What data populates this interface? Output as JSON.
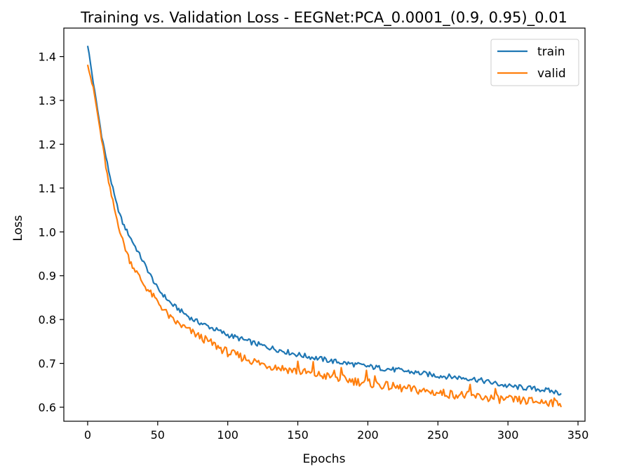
{
  "chart_data": {
    "type": "line",
    "title": "Training vs. Validation Loss - EEGNet:PCA_0.0001_(0.9, 0.95)_0.01",
    "xlabel": "Epochs",
    "ylabel": "Loss",
    "xlim": [
      -17,
      355
    ],
    "ylim": [
      0.568,
      1.465
    ],
    "xticks": [
      0,
      50,
      100,
      150,
      200,
      250,
      300,
      350
    ],
    "xtick_labels": [
      "0",
      "50",
      "100",
      "150",
      "200",
      "250",
      "300",
      "350"
    ],
    "yticks": [
      0.6,
      0.7,
      0.8,
      0.9,
      1.0,
      1.1,
      1.2,
      1.3,
      1.4
    ],
    "ytick_labels": [
      "0.6",
      "0.7",
      "0.8",
      "0.9",
      "1.0",
      "1.1",
      "1.2",
      "1.3",
      "1.4"
    ],
    "grid": false,
    "legend": "top-right",
    "epochs": 339,
    "series": [
      {
        "name": "train",
        "color": "#1f77b4",
        "x": [
          0,
          5,
          10,
          15,
          20,
          25,
          30,
          40,
          50,
          60,
          75,
          100,
          125,
          150,
          175,
          200,
          225,
          250,
          275,
          300,
          325,
          338
        ],
        "y": [
          1.427,
          1.32,
          1.22,
          1.14,
          1.07,
          1.02,
          0.99,
          0.93,
          0.87,
          0.835,
          0.8,
          0.765,
          0.74,
          0.72,
          0.705,
          0.693,
          0.683,
          0.672,
          0.665,
          0.648,
          0.64,
          0.632
        ]
      },
      {
        "name": "valid",
        "color": "#ff7f0e",
        "x": [
          0,
          5,
          10,
          15,
          20,
          25,
          30,
          40,
          50,
          60,
          75,
          100,
          125,
          150,
          175,
          200,
          225,
          250,
          275,
          300,
          325,
          338
        ],
        "y": [
          1.387,
          1.31,
          1.21,
          1.11,
          1.04,
          0.98,
          0.935,
          0.88,
          0.84,
          0.8,
          0.77,
          0.725,
          0.698,
          0.682,
          0.668,
          0.655,
          0.643,
          0.633,
          0.625,
          0.617,
          0.612,
          0.61
        ]
      }
    ]
  }
}
